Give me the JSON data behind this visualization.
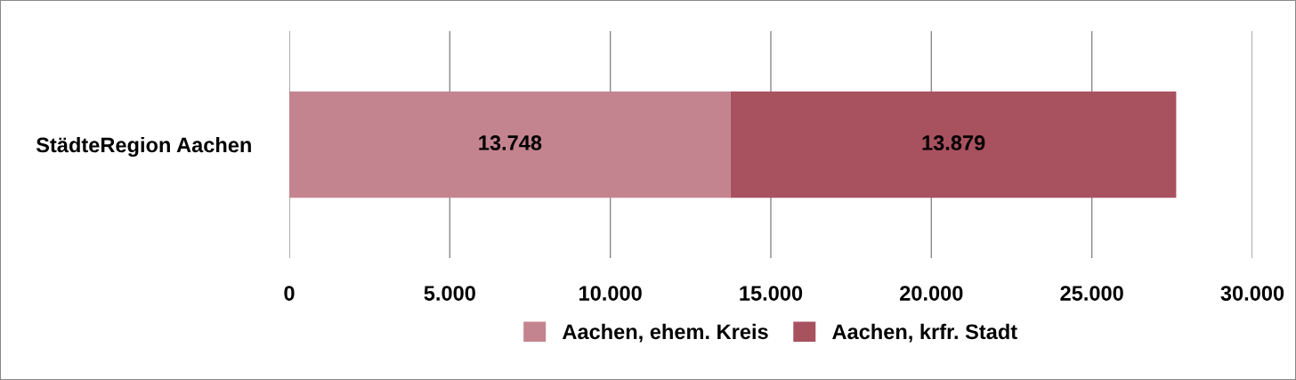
{
  "chart_data": {
    "type": "bar",
    "orientation": "horizontal",
    "stacked": true,
    "categories": [
      "StädteRegion Aachen"
    ],
    "series": [
      {
        "name": "Aachen, ehem. Kreis",
        "color": "#c4848f",
        "values": [
          13748
        ],
        "value_labels": [
          "13.748"
        ]
      },
      {
        "name": "Aachen, krfr. Stadt",
        "color": "#a8515f",
        "values": [
          13879
        ],
        "value_labels": [
          "13.879"
        ]
      }
    ],
    "xlim": [
      0,
      30000
    ],
    "xticks": [
      0,
      {
        "value": 5000,
        "label": "5.000"
      },
      {
        "value": 10000,
        "label": "10.000"
      },
      {
        "value": 15000,
        "label": "15.000"
      },
      {
        "value": 20000,
        "label": "20.000"
      },
      {
        "value": 25000,
        "label": "25.000"
      },
      {
        "value": 30000,
        "label": "30.000"
      }
    ],
    "grid": "x",
    "legend": "bottom"
  }
}
